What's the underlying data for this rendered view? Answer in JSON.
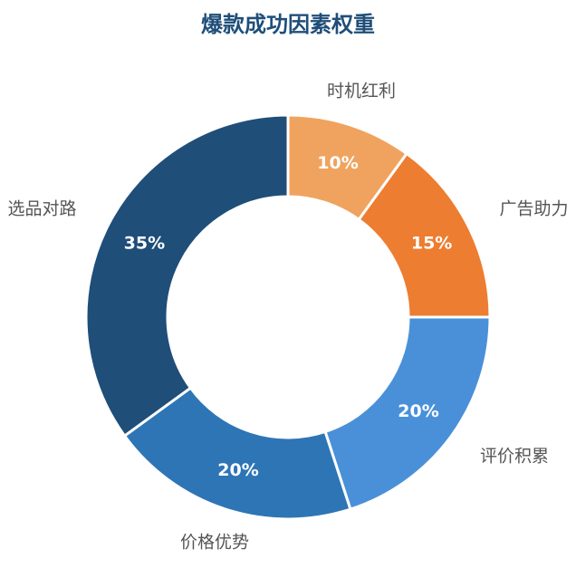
{
  "chart_data": {
    "type": "donut",
    "title": "爆款成功因素权重",
    "categories": [
      "时机红利",
      "广告助力",
      "评价积累",
      "价格优势",
      "选品对路"
    ],
    "values": [
      10,
      15,
      20,
      20,
      35
    ],
    "value_labels": [
      "10%",
      "15%",
      "20%",
      "20%",
      "35%"
    ],
    "colors": [
      "#f0a35e",
      "#ed7d31",
      "#4a90d9",
      "#2e75b6",
      "#1f4e79"
    ]
  }
}
